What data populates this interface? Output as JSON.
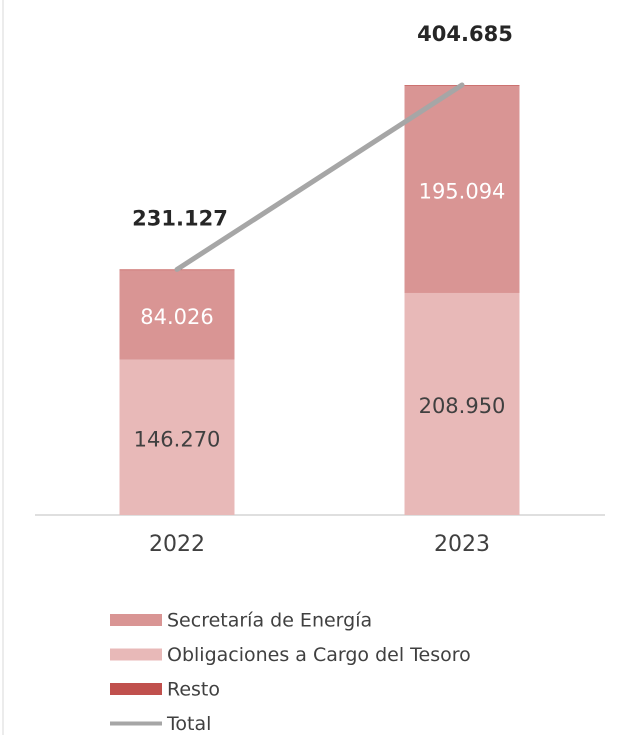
{
  "chart_data": {
    "type": "stacked_bar_line",
    "categories": [
      "2022",
      "2023"
    ],
    "series": [
      {
        "name": "Obligaciones a Cargo del Tesoro",
        "color": "#e8b9b8",
        "values": [
          146270,
          208950
        ],
        "value_labels": [
          "146.270",
          "208.950"
        ]
      },
      {
        "name": "Secretaría de Energía",
        "color": "#d99594",
        "values": [
          84026,
          195094
        ],
        "value_labels": [
          "84.026",
          "195.094"
        ]
      },
      {
        "name": "Resto",
        "color": "#c0504d",
        "values": [
          831,
          641
        ]
      },
      {
        "name": "Total",
        "color": "#a6a6a6",
        "type": "line",
        "values": [
          231127,
          404685
        ],
        "value_labels": [
          "231.127",
          "404.685"
        ]
      }
    ],
    "legend_order": [
      1,
      0,
      2,
      3
    ]
  }
}
